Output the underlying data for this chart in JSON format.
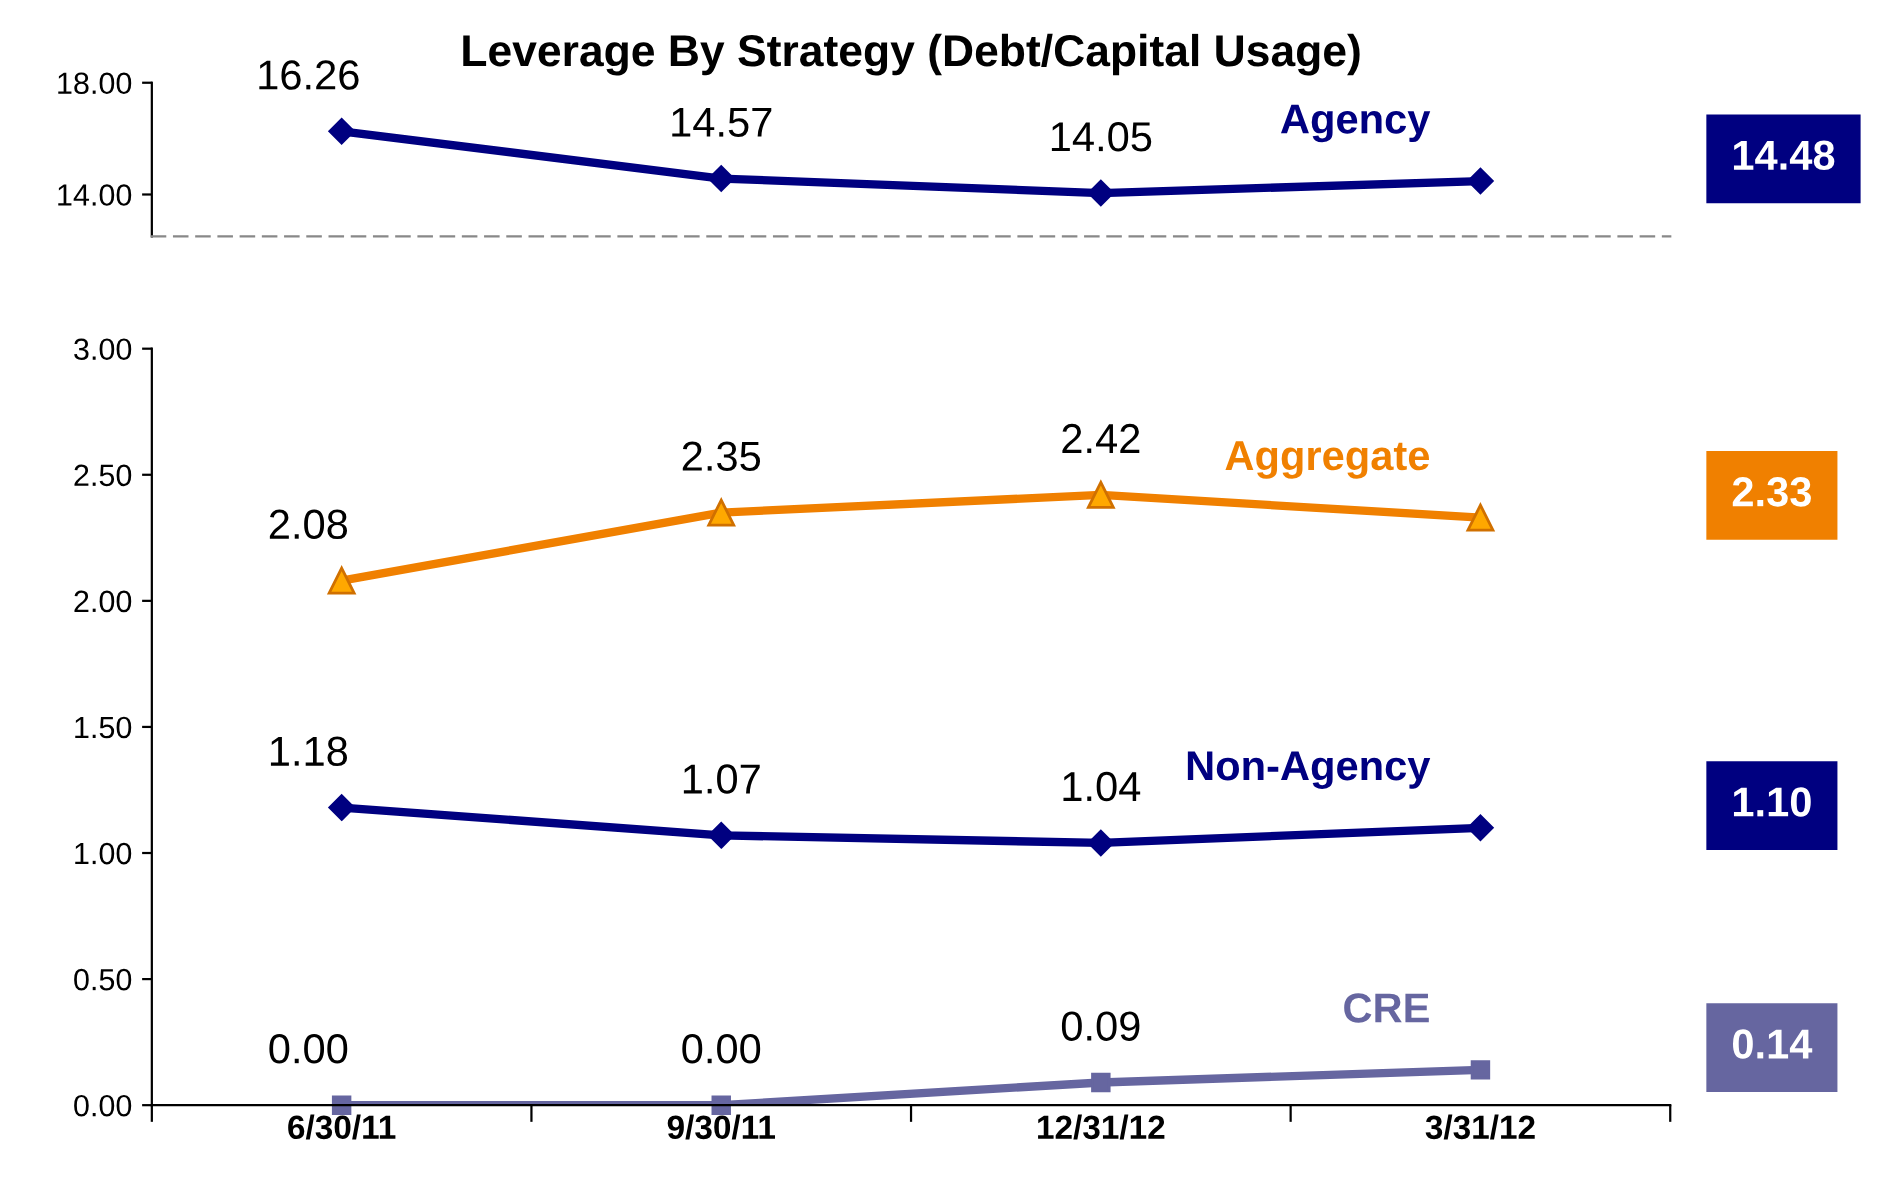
{
  "chart_data": [
    {
      "type": "line",
      "title": "Leverage By Strategy (Debt/Capital Usage)",
      "categories": [
        null,
        null,
        null,
        null
      ],
      "ylim": [
        12.5,
        18
      ],
      "yticks": [
        {
          "value": 14,
          "label": "14.00"
        },
        {
          "value": 18,
          "label": "18.00"
        }
      ],
      "tick_labels": "y",
      "grid": false,
      "legend": false,
      "series": [
        {
          "name": "Agency",
          "color": "#000080",
          "marker": "diamond",
          "values": [
            16.26,
            14.57,
            14.05,
            14.48
          ],
          "value_labels": [
            "16.26",
            "14.57",
            "14.05",
            null
          ]
        }
      ],
      "annotations": [
        "14.48"
      ]
    },
    {
      "type": "line",
      "categories": [
        "6/30/11",
        "9/30/11",
        "12/31/12",
        "3/31/12"
      ],
      "ylim": [
        0,
        3
      ],
      "yticks": [
        {
          "value": 0,
          "label": "0.00"
        },
        {
          "value": 0.5,
          "label": "0.50"
        },
        {
          "value": 1,
          "label": "1.00"
        },
        {
          "value": 1.5,
          "label": "1.50"
        },
        {
          "value": 2,
          "label": "2.00"
        },
        {
          "value": 2.5,
          "label": "2.50"
        },
        {
          "value": 3,
          "label": "3.00"
        }
      ],
      "grid": false,
      "legend": false,
      "series": [
        {
          "name": "Aggregate",
          "color": "#f08000",
          "marker": "triangle",
          "values": [
            2.08,
            2.35,
            2.42,
            2.33
          ],
          "value_labels": [
            "2.08",
            "2.35",
            "2.42",
            null
          ]
        },
        {
          "name": "Non-Agency",
          "color": "#000080",
          "marker": "diamond",
          "values": [
            1.18,
            1.07,
            1.04,
            1.1
          ],
          "value_labels": [
            "1.18",
            "1.07",
            "1.04",
            null
          ]
        },
        {
          "name": "CRE",
          "color": "#6666a0",
          "marker": "square",
          "values": [
            0.0,
            0.0,
            0.09,
            0.14
          ],
          "value_labels": [
            "0.00",
            "0.00",
            "0.09",
            null
          ]
        }
      ],
      "annotations": [
        "2.33",
        "1.10",
        "0.14"
      ]
    }
  ]
}
